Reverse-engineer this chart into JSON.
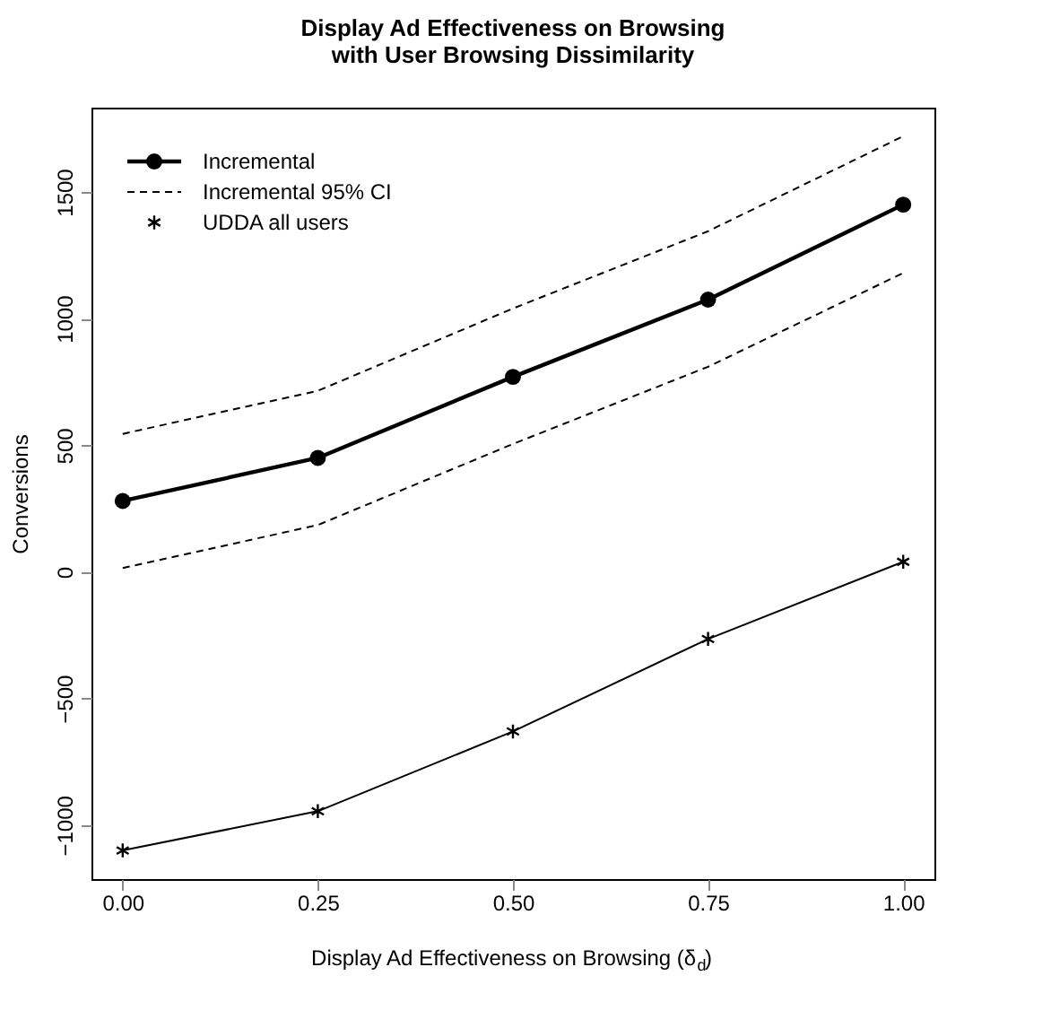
{
  "chart_data": {
    "type": "line",
    "title": "Display Ad Effectiveness on Browsing\nwith User Browsing Dissimilarity",
    "xlabel": "Display Ad Effectiveness on Browsing (δ$_{d}$)",
    "ylabel": "Conversions",
    "x": [
      0,
      0.25,
      0.5,
      0.75,
      1
    ],
    "series": [
      {
        "name": "Incremental",
        "color": "#000000",
        "values": [
          280,
          450,
          770,
          1075,
          1450
        ],
        "marker": "circle",
        "line_style": "solid"
      },
      {
        "name": "Incremental 95% CI",
        "color": "#000000",
        "values": [
          545,
          715,
          1040,
          1345,
          1720
        ],
        "marker": "none",
        "line_style": "dashed"
      },
      {
        "color": "#000000",
        "values": [
          15,
          185,
          505,
          810,
          1180
        ],
        "marker": "none",
        "line_style": "dashed"
      },
      {
        "name": "UDDA all users",
        "color": "#000000",
        "values": [
          -1100,
          -945,
          -630,
          -265,
          40
        ],
        "marker": "cross",
        "line_style": "solid"
      }
    ],
    "xlim": [
      -0.04,
      1.04
    ],
    "ylim": [
      -1213,
      1833
    ],
    "xticks": [
      {
        "value": 0,
        "label": "0.00"
      },
      {
        "value": 0.25,
        "label": "0.25"
      },
      {
        "value": 0.5,
        "label": "0.50"
      },
      {
        "value": 0.75,
        "label": "0.75"
      },
      {
        "value": 1,
        "label": "1.00"
      }
    ],
    "yticks": [
      -1000,
      -500,
      0,
      500,
      1000,
      1500
    ],
    "grid": false,
    "legend": "top left"
  }
}
